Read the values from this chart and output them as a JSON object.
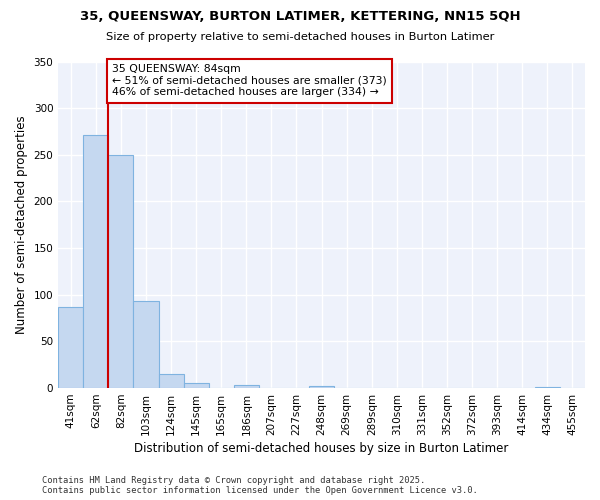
{
  "title1": "35, QUEENSWAY, BURTON LATIMER, KETTERING, NN15 5QH",
  "title2": "Size of property relative to semi-detached houses in Burton Latimer",
  "xlabel": "Distribution of semi-detached houses by size in Burton Latimer",
  "ylabel": "Number of semi-detached properties",
  "categories": [
    "41sqm",
    "62sqm",
    "82sqm",
    "103sqm",
    "124sqm",
    "145sqm",
    "165sqm",
    "186sqm",
    "207sqm",
    "227sqm",
    "248sqm",
    "269sqm",
    "289sqm",
    "310sqm",
    "331sqm",
    "352sqm",
    "372sqm",
    "393sqm",
    "414sqm",
    "434sqm",
    "455sqm"
  ],
  "values": [
    87,
    271,
    250,
    93,
    15,
    5,
    0,
    3,
    0,
    0,
    2,
    0,
    0,
    0,
    0,
    0,
    0,
    0,
    0,
    1,
    0
  ],
  "bar_color": "#c5d8f0",
  "bar_edge_color": "#7fb3e0",
  "property_line_idx": 2,
  "annotation_line1": "35 QUEENSWAY: 84sqm",
  "annotation_line2": "← 51% of semi-detached houses are smaller (373)",
  "annotation_line3": "46% of semi-detached houses are larger (334) →",
  "red_line_color": "#cc0000",
  "annotation_box_color": "#cc0000",
  "ylim": [
    0,
    350
  ],
  "yticks": [
    0,
    50,
    100,
    150,
    200,
    250,
    300,
    350
  ],
  "background_color": "#eef2fb",
  "footer1": "Contains HM Land Registry data © Crown copyright and database right 2025.",
  "footer2": "Contains public sector information licensed under the Open Government Licence v3.0."
}
